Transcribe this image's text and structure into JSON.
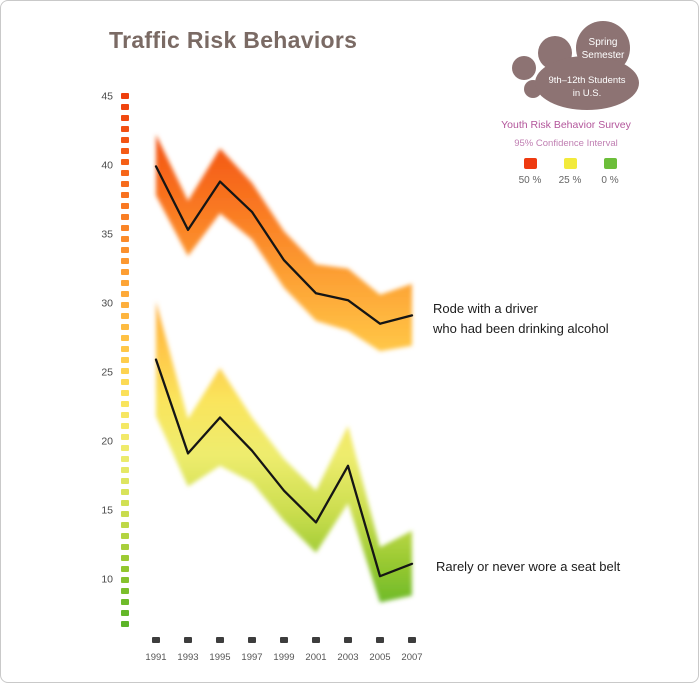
{
  "page": {
    "title": "Traffic Risk Behaviors"
  },
  "badge": {
    "line1": "Spring",
    "line2": "Semester",
    "line3": "9th–12th Students",
    "line4": "in U.S.",
    "cloud_color": "#8d7373",
    "subtitle1": "Youth Risk Behavior Survey",
    "subtitle2": "95% Confidence Interval",
    "subtitle_color": "#b3569b"
  },
  "legend": {
    "items": [
      {
        "label": "50 %",
        "color": "#ee3a10"
      },
      {
        "label": "25 %",
        "color": "#f2ea3c"
      },
      {
        "label": "0 %",
        "color": "#6cbe3a"
      }
    ]
  },
  "chart_data": {
    "type": "line",
    "title": "Traffic Risk Behaviors",
    "xlabel": "",
    "ylabel": "",
    "grid": false,
    "legend_position": "top-right",
    "x_labels": [
      "1991",
      "1993",
      "1995",
      "1997",
      "1999",
      "2001",
      "2003",
      "2005",
      "2007"
    ],
    "y_ticks": [
      45,
      40,
      35,
      30,
      25,
      20,
      15,
      10
    ],
    "ylim": [
      7,
      46
    ],
    "series": [
      {
        "key": "drinking-driver",
        "name": "Rode with a driver who had been drinking alcohol",
        "values": [
          39.9,
          35.3,
          38.8,
          36.6,
          33.1,
          30.7,
          30.2,
          28.5,
          29.1
        ],
        "band_upper": [
          42.2,
          37.4,
          41.2,
          38.7,
          35.2,
          32.8,
          32.5,
          30.6,
          31.4
        ],
        "band_lower": [
          37.8,
          33.4,
          36.5,
          34.6,
          31.1,
          28.7,
          28.0,
          26.5,
          26.9
        ]
      },
      {
        "key": "seat-belt",
        "name": "Rarely or never wore a seat belt",
        "values": [
          25.9,
          19.1,
          21.7,
          19.3,
          16.4,
          14.1,
          18.2,
          10.2,
          11.1
        ],
        "band_upper": [
          30.1,
          21.6,
          25.3,
          21.7,
          18.7,
          16.4,
          21.1,
          12.3,
          13.5
        ],
        "band_lower": [
          21.8,
          16.7,
          18.2,
          17.0,
          14.2,
          11.9,
          15.5,
          8.3,
          8.8
        ]
      }
    ],
    "color_scale": {
      "values": [
        50,
        44,
        38,
        32,
        27,
        23,
        19,
        15,
        11,
        7
      ],
      "colors": [
        "#e61900",
        "#f0460e",
        "#f8701e",
        "#fda034",
        "#ffc446",
        "#fae45c",
        "#eeec6e",
        "#cdde50",
        "#96c830",
        "#5cb428"
      ]
    },
    "annotations": [
      {
        "line1": "Rode with a driver",
        "line2": "who had been drinking alcohol"
      },
      {
        "line1": "Rarely or never wore a seat belt",
        "line2": ""
      }
    ]
  }
}
